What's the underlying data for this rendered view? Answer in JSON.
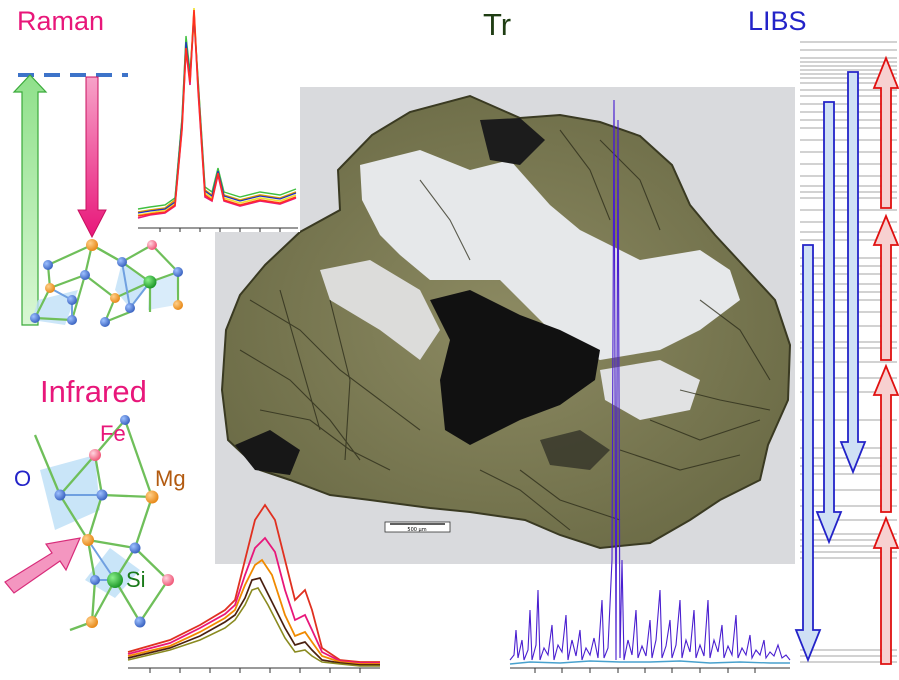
{
  "labels": {
    "raman": "Raman",
    "tr": "Tr",
    "libs": "LIBS",
    "infrared": "Infrared",
    "fe": "Fe",
    "o": "O",
    "mg": "Mg",
    "si": "Si",
    "scale_bar": "500 µm"
  },
  "colors": {
    "raman": "#e8177a",
    "tr": "#1f3d13",
    "libs": "#2323c8",
    "infrared": "#e8177a",
    "fe": "#e8177a",
    "o": "#2323c8",
    "mg": "#b25a10",
    "si": "#1a7a1a",
    "arrow_up_green": "#8fe08a",
    "arrow_down_pink": "#ea2f8e",
    "arrow_blue": "#c9dcf5",
    "arrow_red": "#f6c7c7"
  }
}
